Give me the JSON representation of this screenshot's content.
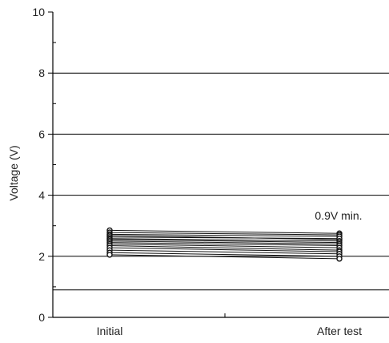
{
  "chart_data": {
    "type": "line",
    "categories": [
      "Initial",
      "After test"
    ],
    "ylabel": "Voltage (V)",
    "xlabel": "",
    "ylim": [
      0,
      10
    ],
    "yticks": [
      "0",
      "2",
      "4",
      "6",
      "8",
      "10"
    ],
    "grid": true,
    "reference_line": {
      "value": 0.9,
      "label": "0.9V min."
    },
    "series": [
      {
        "values": [
          2.85,
          2.75
        ]
      },
      {
        "values": [
          2.78,
          2.7
        ]
      },
      {
        "values": [
          2.72,
          2.65
        ]
      },
      {
        "values": [
          2.68,
          2.55
        ]
      },
      {
        "values": [
          2.63,
          2.58
        ]
      },
      {
        "values": [
          2.58,
          2.5
        ]
      },
      {
        "values": [
          2.55,
          2.45
        ]
      },
      {
        "values": [
          2.5,
          2.4
        ]
      },
      {
        "values": [
          2.45,
          2.35
        ]
      },
      {
        "values": [
          2.4,
          2.28
        ]
      },
      {
        "values": [
          2.35,
          2.2
        ]
      },
      {
        "values": [
          2.28,
          2.15
        ]
      },
      {
        "values": [
          2.2,
          2.08
        ]
      },
      {
        "values": [
          2.12,
          2.0
        ]
      },
      {
        "values": [
          2.05,
          1.92
        ]
      }
    ],
    "colors": {
      "line": "#111111",
      "grid": "#000000",
      "marker_fill": "#ffffff"
    }
  }
}
